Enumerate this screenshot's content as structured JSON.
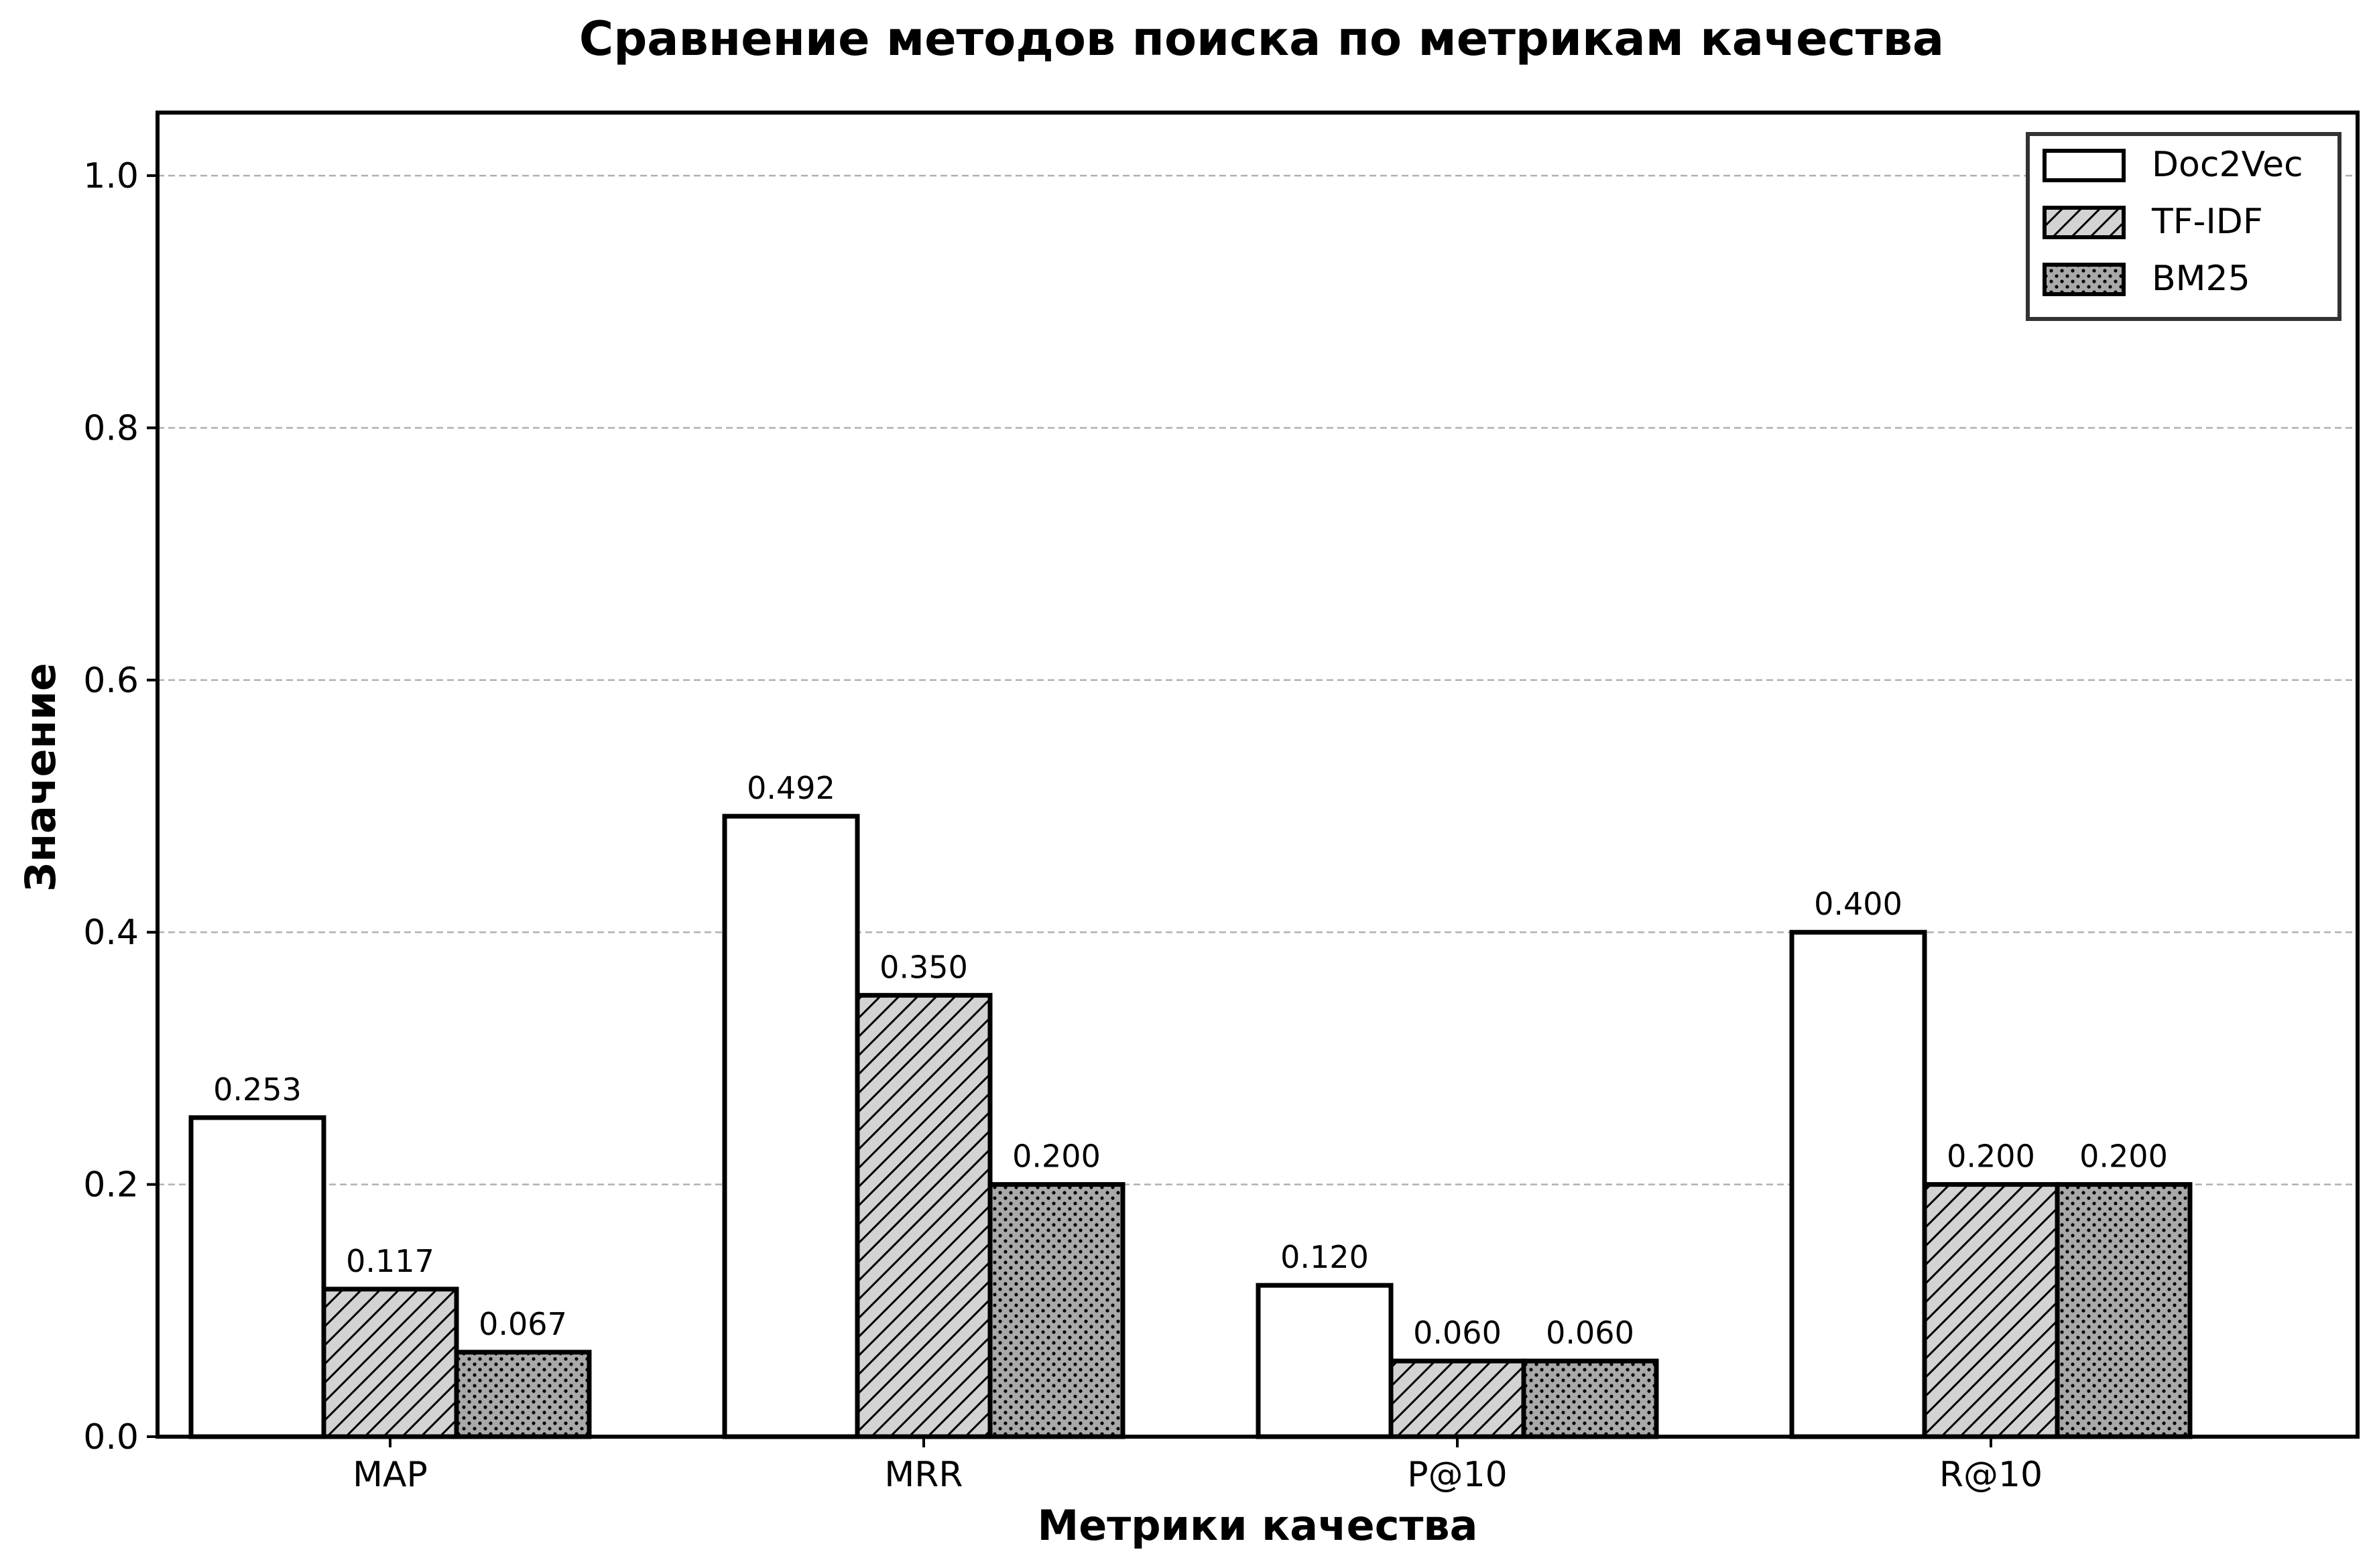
{
  "chart_data": {
    "type": "bar",
    "title": "Сравнение методов поиска по метрикам качества",
    "xlabel": "Метрики качества",
    "ylabel": "Значение",
    "categories": [
      "MAP",
      "MRR",
      "P@10",
      "R@10"
    ],
    "series": [
      {
        "name": "Doc2Vec",
        "values": [
          0.253,
          0.492,
          0.12,
          0.4
        ],
        "labels": [
          "0.253",
          "0.492",
          "0.120",
          "0.400"
        ],
        "pattern": "none",
        "fill": "#ffffff"
      },
      {
        "name": "TF-IDF",
        "values": [
          0.117,
          0.35,
          0.06,
          0.2
        ],
        "labels": [
          "0.117",
          "0.350",
          "0.060",
          "0.200"
        ],
        "pattern": "diagonal-hatch",
        "fill": "#d3d3d3"
      },
      {
        "name": "BM25",
        "values": [
          0.067,
          0.2,
          0.06,
          0.2
        ],
        "labels": [
          "0.067",
          "0.200",
          "0.060",
          "0.200"
        ],
        "pattern": "dots",
        "fill": "#a9a9a9"
      }
    ],
    "ylim": [
      0,
      1.05
    ],
    "yticks": [
      "0.0",
      "0.2",
      "0.4",
      "0.6",
      "0.8",
      "1.0"
    ],
    "grid": "horizontal dashed",
    "legend_position": "top-right"
  }
}
